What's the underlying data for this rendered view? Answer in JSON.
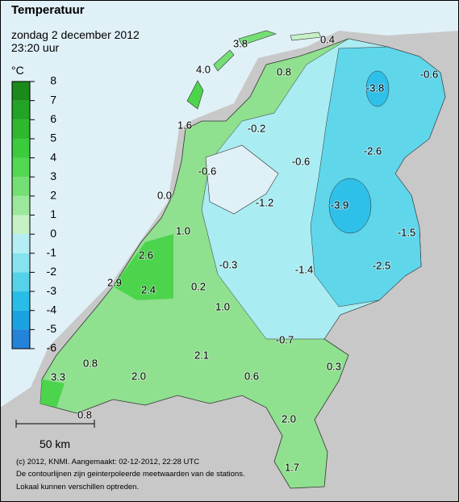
{
  "header": {
    "title": "Temperatuur",
    "date": "zondag 2 december 2012",
    "time": "23:20 uur"
  },
  "legend": {
    "unit": "°C",
    "ticks": [
      8,
      7,
      6,
      5,
      4,
      3,
      2,
      1,
      0,
      -1,
      -2,
      -3,
      -4,
      -5,
      -6
    ],
    "colors": [
      "#1b8a1b",
      "#23a323",
      "#2db82d",
      "#3ccb3c",
      "#52d852",
      "#74df74",
      "#9be79b",
      "#c6f1c6",
      "#b4eef4",
      "#86e2ee",
      "#55d2ea",
      "#27bde6",
      "#1aa2e0",
      "#2283d8"
    ]
  },
  "stations": [
    3.8,
    0.4,
    -0.6,
    {
      "value": 4,
      "label": "4.0"
    },
    0.8,
    -3.8,
    1.6,
    -0.2,
    -2.6,
    -0.6,
    -0.6,
    {
      "value": 0,
      "label": "0.0"
    },
    -1.2,
    -3.9,
    -1.5,
    {
      "value": 1,
      "label": "1.0"
    },
    2.6,
    -0.3,
    -1.4,
    -2.5,
    2.9,
    2.4,
    0.2,
    {
      "value": 1,
      "label": "1.0"
    },
    -0.7,
    2.1,
    0.8,
    0.3,
    3.3,
    {
      "value": 2,
      "label": "2.0"
    },
    0.6,
    0.8,
    {
      "value": 2,
      "label": "2.0"
    },
    1.7
  ],
  "scale": "50 km",
  "footer": [
    "(c) 2012, KNMI. Aangemaakt: 02-12-2012, 22:28 UTC",
    "De contourlijnen zijn geinterpoleerde meetwaarden van de stations.",
    "Lokaal kunnen verschillen optreden."
  ]
}
